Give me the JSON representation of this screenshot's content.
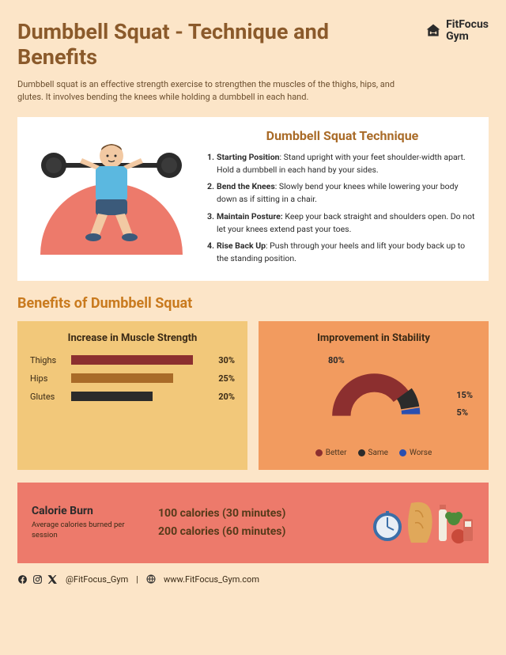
{
  "background_color": "#fce5c8",
  "header": {
    "title": "Dumbbell Squat - Technique and Benefits",
    "title_color": "#8b5a2b",
    "title_fontsize": 27,
    "brand_name": "FitFocus\nGym",
    "brand_color": "#2b2b2b"
  },
  "intro": "Dumbbell squat is an effective strength exercise to strengthen the muscles of the thighs, hips, and glutes. It involves bending the knees while holding a dumbbell in each hand.",
  "technique": {
    "heading": "Dumbbell Squat Technique",
    "heading_color": "#a96b28",
    "card_bg": "#ffffff",
    "illustration": {
      "arc_color": "#ed7a6b",
      "shirt_color": "#5bb8e0",
      "shorts_color": "#3b5a7a",
      "skin_color": "#f2c9a3",
      "hair_color": "#6b4a2b",
      "bar_color": "#2b2b2b",
      "shoe_color": "#3b5a7a"
    },
    "steps": [
      {
        "label": "Starting Position",
        "text": ": Stand upright with your feet shoulder-width apart. Hold a dumbbell in each hand by your sides."
      },
      {
        "label": "Bend the Knees",
        "text": ": Slowly bend your knees while lowering your body down as if sitting in a chair."
      },
      {
        "label": "Maintain Posture:",
        "text": " Keep your back straight and shoulders open. Do not let your knees extend past your toes."
      },
      {
        "label": "Rise Back Up",
        "text": ": Push through your heels and lift your body back up to the standing position."
      }
    ]
  },
  "benefits": {
    "section_title": "Benefits of Dumbbell Squat",
    "section_title_color": "#c97a1e"
  },
  "bar_chart": {
    "type": "bar",
    "title": "Increase in Muscle Strength",
    "card_bg": "#f2c87a",
    "label_fontsize": 11,
    "max_pct": 35,
    "bars": [
      {
        "label": "Thighs",
        "value": 30,
        "color": "#8c2f2f"
      },
      {
        "label": "Hips",
        "value": 25,
        "color": "#a96b28"
      },
      {
        "label": "Glutes",
        "value": 20,
        "color": "#2b2b2b"
      }
    ]
  },
  "gauge_chart": {
    "type": "pie",
    "title": "Improvement in Stability",
    "card_bg": "#f29b5f",
    "slices": [
      {
        "label": "Better",
        "value": 80,
        "color": "#8c2f2f"
      },
      {
        "label": "Same",
        "value": 15,
        "color": "#2b2b2b"
      },
      {
        "label": "Worse",
        "value": 5,
        "color": "#2a4fb0"
      }
    ],
    "slice_labels": {
      "better": "80%",
      "same": "15%",
      "worse": "5%"
    }
  },
  "calorie": {
    "band_bg": "#ed7a6b",
    "title": "Calorie Burn",
    "subtitle": "Average calories burned per session",
    "line1": "100 calories (30 minutes)",
    "line2": "200 calories (60 minutes)",
    "value_color": "#563a1a",
    "icon_colors": {
      "stopwatch_ring": "#3b6fa8",
      "stopwatch_face": "#e8eef5",
      "torso": "#e0a85a",
      "bottle": "#f2ede0",
      "broccoli": "#4d8b3a",
      "apple": "#c94a3a",
      "calculator": "#d66a5a"
    }
  },
  "footer": {
    "handle": "@FitFocus_Gym",
    "url": "www.FitFocus_Gym.com",
    "separator": "|"
  }
}
